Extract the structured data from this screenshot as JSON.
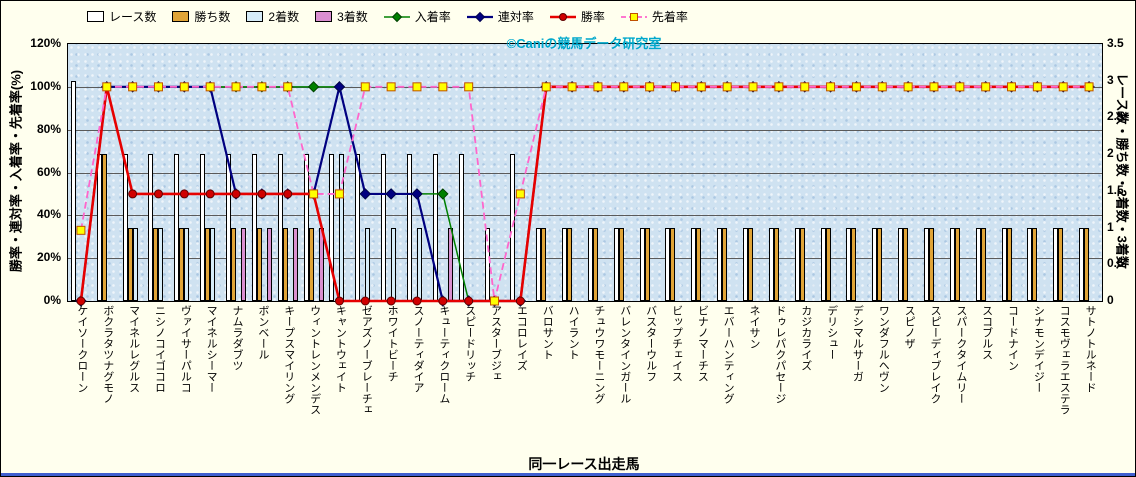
{
  "colors": {
    "background": "#ffffee",
    "plot_fill": "#cfe2f1",
    "grid": "#5a5a5a",
    "watermark": "#00a8cc",
    "bottom_edge": "#3f5fcf"
  },
  "chart_data": {
    "type": "combo-bar-line",
    "legend_position": "top",
    "grid": "horizontal",
    "watermark": "©Caniの競馬データ研究室",
    "x_title": "同一レース出走馬",
    "left_axis": {
      "title": "勝率・連対率・入着率・先着率(%)",
      "min": 0,
      "max": 120,
      "ticks": [
        "0%",
        "20%",
        "40%",
        "60%",
        "80%",
        "100%",
        "120%"
      ]
    },
    "right_axis": {
      "title": "レース数・勝ち数・2着数・3着数",
      "min": 0,
      "max": 3.5,
      "ticks": [
        "0",
        "0.5",
        "1",
        "1.5",
        "2",
        "2.5",
        "3",
        "3.5"
      ]
    },
    "categories": [
      "ケイソークローン",
      "ボクラタツナグモノ",
      "マイネルレグルス",
      "ニシノコイゴコロ",
      "ヴァイサーパルコ",
      "マイネルシーマー",
      "ナムラダブツ",
      "ボンベール",
      "キープスマイリング",
      "ウィントレンメンデス",
      "キャントウェイト",
      "ゼアズノーブレーチェ",
      "ホワイトビーチ",
      "スノーティダイア",
      "キューティクローム",
      "スピードリッチ",
      "アスターブジェ",
      "エコロレイズ",
      "バロサント",
      "ハイラント",
      "チュウワモーニング",
      "バレンタインガール",
      "バスターウルフ",
      "ビップチェイス",
      "ビナノマーチス",
      "エバーハンティング",
      "ネイサン",
      "ドゥレパクパセージ",
      "カジカライズ",
      "デリシュー",
      "デシマルサーガ",
      "ワンダフルヘヴン",
      "スピノザ",
      "スピーディブレイク",
      "スパークタイムリー",
      "スコブルス",
      "コードナイン",
      "シナモンデイジー",
      "コスモヴェラエステラ",
      "サトノトルネード"
    ],
    "bar_series": [
      {
        "key": "race-count",
        "name": "レース数",
        "color": "#ffffff",
        "values": [
          3,
          2,
          2,
          2,
          2,
          2,
          2,
          2,
          2,
          2,
          2,
          2,
          2,
          2,
          2,
          2,
          1,
          2,
          1,
          1,
          1,
          1,
          1,
          1,
          1,
          1,
          1,
          1,
          1,
          1,
          1,
          1,
          1,
          1,
          1,
          1,
          1,
          1,
          1,
          1
        ]
      },
      {
        "key": "win-count",
        "name": "勝ち数",
        "color": "#e0a437",
        "values": [
          0,
          2,
          1,
          1,
          1,
          1,
          1,
          1,
          1,
          1,
          0,
          0,
          0,
          0,
          0,
          0,
          0,
          0,
          1,
          1,
          1,
          1,
          1,
          1,
          1,
          1,
          1,
          1,
          1,
          1,
          1,
          1,
          1,
          1,
          1,
          1,
          1,
          1,
          1,
          1
        ]
      },
      {
        "key": "second-count",
        "name": "2着数",
        "color": "#d6ecf8",
        "values": [
          0,
          0,
          1,
          1,
          1,
          1,
          0,
          0,
          0,
          0,
          2,
          1,
          1,
          1,
          0,
          0,
          0,
          0,
          0,
          0,
          0,
          0,
          0,
          0,
          0,
          0,
          0,
          0,
          0,
          0,
          0,
          0,
          0,
          0,
          0,
          0,
          0,
          0,
          0,
          0
        ]
      },
      {
        "key": "third-count",
        "name": "3着数",
        "color": "#da8fd0",
        "values": [
          0,
          0,
          0,
          0,
          0,
          0,
          1,
          1,
          1,
          1,
          0,
          0,
          0,
          0,
          1,
          0,
          0,
          0,
          0,
          0,
          0,
          0,
          0,
          0,
          0,
          0,
          0,
          0,
          0,
          0,
          0,
          0,
          0,
          0,
          0,
          0,
          0,
          0,
          0,
          0
        ]
      }
    ],
    "line_series": [
      {
        "key": "place-rate",
        "name": "入着率",
        "color": "#008000",
        "marker": "diamond",
        "marker_fill": "#008000",
        "marker_stroke": "#004000",
        "dash": false,
        "width": 1.5,
        "values": [
          0,
          100,
          100,
          100,
          100,
          100,
          100,
          100,
          100,
          100,
          100,
          50,
          50,
          50,
          50,
          0,
          0,
          0,
          100,
          100,
          100,
          100,
          100,
          100,
          100,
          100,
          100,
          100,
          100,
          100,
          100,
          100,
          100,
          100,
          100,
          100,
          100,
          100,
          100,
          100
        ]
      },
      {
        "key": "quinella-rate",
        "name": "連対率",
        "color": "#000080",
        "marker": "diamond",
        "marker_fill": "#000080",
        "marker_stroke": "#000050",
        "dash": false,
        "width": 2.2,
        "values": [
          0,
          100,
          100,
          100,
          100,
          100,
          50,
          50,
          50,
          50,
          100,
          50,
          50,
          50,
          0,
          0,
          0,
          0,
          100,
          100,
          100,
          100,
          100,
          100,
          100,
          100,
          100,
          100,
          100,
          100,
          100,
          100,
          100,
          100,
          100,
          100,
          100,
          100,
          100,
          100
        ]
      },
      {
        "key": "win-rate",
        "name": "勝率",
        "color": "#e60000",
        "marker": "circle",
        "marker_fill": "#d00000",
        "marker_stroke": "#600000",
        "dash": false,
        "width": 2.6,
        "values": [
          0,
          100,
          50,
          50,
          50,
          50,
          50,
          50,
          50,
          50,
          0,
          0,
          0,
          0,
          0,
          0,
          0,
          0,
          100,
          100,
          100,
          100,
          100,
          100,
          100,
          100,
          100,
          100,
          100,
          100,
          100,
          100,
          100,
          100,
          100,
          100,
          100,
          100,
          100,
          100
        ]
      },
      {
        "key": "first-arrival-rate",
        "name": "先着率",
        "color": "#ff66cc",
        "marker": "square",
        "marker_fill": "#ffff00",
        "marker_stroke": "#c05000",
        "dash": true,
        "width": 1.8,
        "values": [
          33,
          100,
          100,
          100,
          100,
          100,
          100,
          100,
          100,
          50,
          50,
          100,
          100,
          100,
          100,
          100,
          0,
          50,
          100,
          100,
          100,
          100,
          100,
          100,
          100,
          100,
          100,
          100,
          100,
          100,
          100,
          100,
          100,
          100,
          100,
          100,
          100,
          100,
          100,
          100
        ]
      }
    ]
  }
}
